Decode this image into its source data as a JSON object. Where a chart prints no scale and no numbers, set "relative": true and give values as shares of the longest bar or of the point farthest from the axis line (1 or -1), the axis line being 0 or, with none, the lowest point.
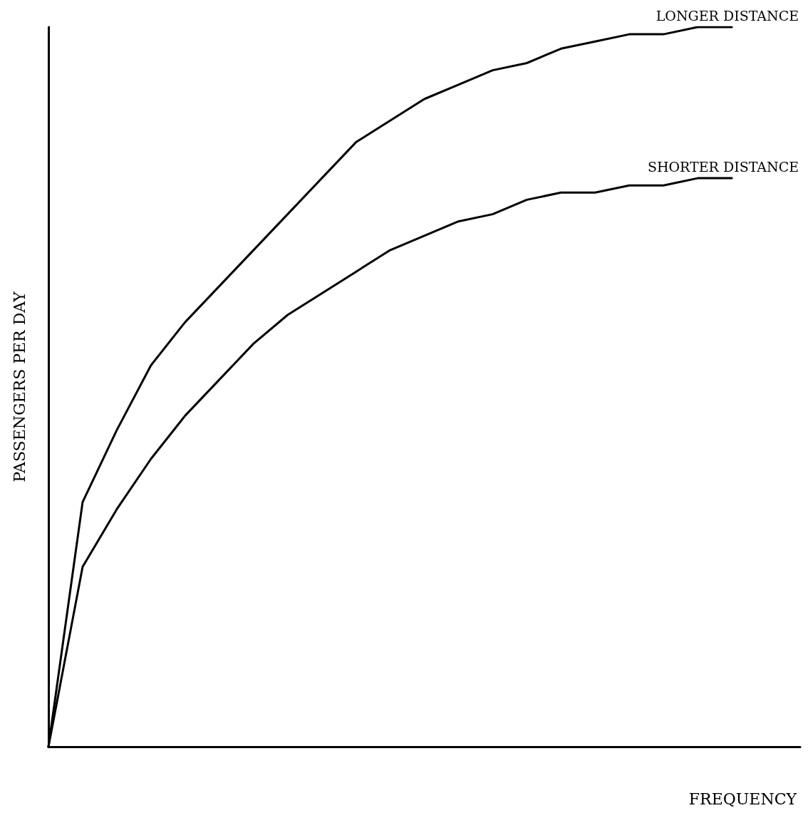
{
  "chart_data": {
    "type": "line",
    "relative": true,
    "xlabel": "FREQUENCY",
    "ylabel": "PASSENGERS PER DAY",
    "categories": [
      null,
      null,
      null,
      null,
      null,
      null,
      null,
      null,
      null,
      null,
      null,
      null,
      null,
      null,
      null,
      null,
      null,
      null,
      null,
      null,
      null,
      null,
      null
    ],
    "series": [
      {
        "name": "LONGER DISTANCE",
        "color": "#000000",
        "values": [
          0,
          0.34,
          0.44,
          0.53,
          0.59,
          0.64,
          0.69,
          0.74,
          0.79,
          0.84,
          0.87,
          0.9,
          0.92,
          0.94,
          0.95,
          0.97,
          0.98,
          0.99,
          0.99,
          1,
          1,
          null,
          null
        ]
      },
      {
        "name": "SHORTER DISTANCE",
        "color": "#000000",
        "values": [
          0,
          0.25,
          0.33,
          0.4,
          0.46,
          0.51,
          0.56,
          0.6,
          0.63,
          0.66,
          0.69,
          0.71,
          0.73,
          0.74,
          0.76,
          0.77,
          0.77,
          0.78,
          0.78,
          0.79,
          0.79,
          null,
          null
        ]
      }
    ],
    "legend": false,
    "grid": false,
    "marker": "none",
    "line_style": "solid"
  }
}
